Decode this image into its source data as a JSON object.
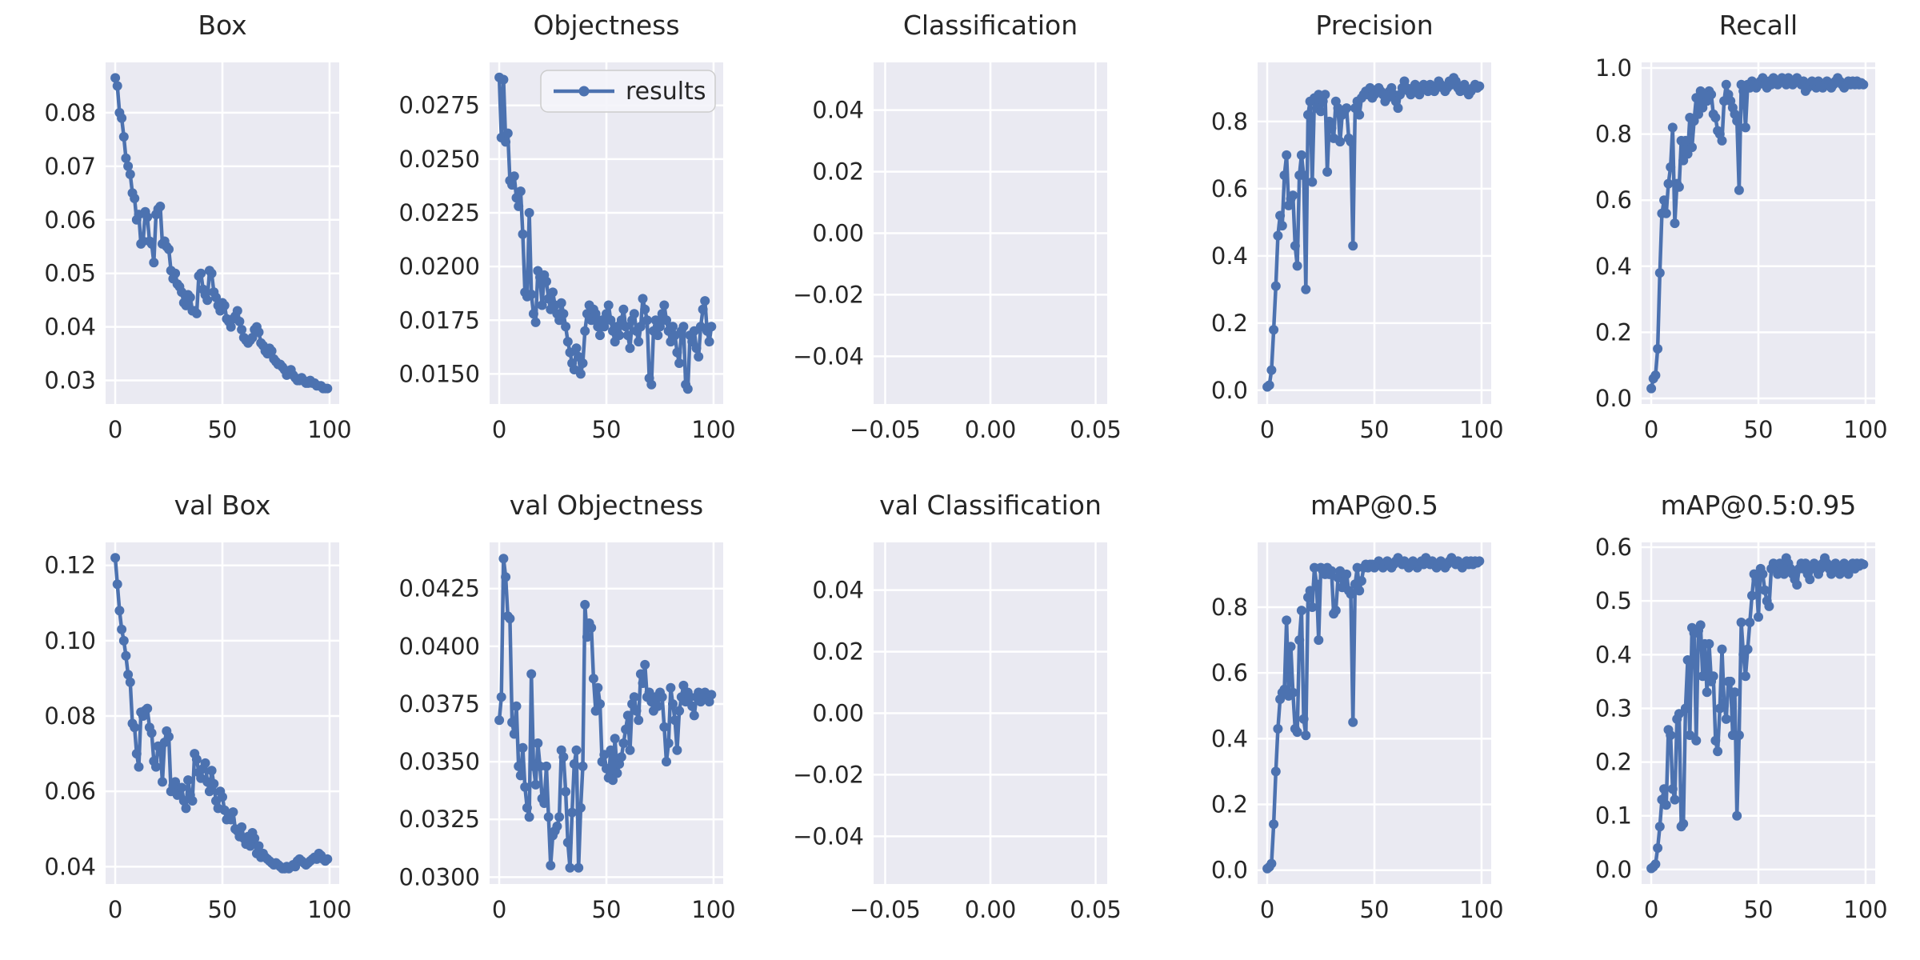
{
  "figure": {
    "background": "#ffffff",
    "axes_background": "#eaeaf2",
    "grid_color": "#ffffff",
    "text_color": "#262626",
    "line_color": "#4c72b0"
  },
  "legend": {
    "label": "results"
  },
  "chart_data": [
    {
      "type": "line",
      "title": "Box",
      "series_name": "results",
      "legend": false,
      "xlim": [
        -4.5,
        104.5
      ],
      "x_ticks": [
        0,
        50,
        100
      ],
      "x_tick_labels": [
        "0",
        "50",
        "100"
      ],
      "ylim": [
        0.0256,
        0.0894
      ],
      "y_ticks": [
        0.03,
        0.04,
        0.05,
        0.06,
        0.07,
        0.08
      ],
      "y_tick_labels": [
        "0.03",
        "0.04",
        "0.05",
        "0.06",
        "0.07",
        "0.08"
      ],
      "values": [
        0.0865,
        0.085,
        0.08,
        0.079,
        0.0755,
        0.0715,
        0.07,
        0.0685,
        0.065,
        0.064,
        0.06,
        0.061,
        0.0555,
        0.056,
        0.0615,
        0.0605,
        0.056,
        0.0555,
        0.052,
        0.061,
        0.062,
        0.0625,
        0.0555,
        0.056,
        0.055,
        0.0545,
        0.0505,
        0.049,
        0.05,
        0.048,
        0.0475,
        0.0465,
        0.0445,
        0.044,
        0.046,
        0.0455,
        0.043,
        0.043,
        0.0425,
        0.0495,
        0.05,
        0.047,
        0.046,
        0.045,
        0.0505,
        0.05,
        0.0465,
        0.0455,
        0.044,
        0.043,
        0.0445,
        0.044,
        0.0415,
        0.041,
        0.04,
        0.0415,
        0.042,
        0.043,
        0.041,
        0.0395,
        0.038,
        0.0375,
        0.037,
        0.0375,
        0.038,
        0.0395,
        0.04,
        0.039,
        0.037,
        0.0365,
        0.0355,
        0.035,
        0.036,
        0.0355,
        0.034,
        0.0335,
        0.033,
        0.033,
        0.0325,
        0.032,
        0.031,
        0.0315,
        0.032,
        0.031,
        0.0305,
        0.03,
        0.03,
        0.0305,
        0.03,
        0.0295,
        0.0295,
        0.03,
        0.0295,
        0.0295,
        0.029,
        0.029,
        0.029,
        0.0285,
        0.0285,
        0.0285
      ]
    },
    {
      "type": "line",
      "title": "Objectness",
      "series_name": "results",
      "legend": true,
      "xlim": [
        -4.5,
        104.5
      ],
      "x_ticks": [
        0,
        50,
        100
      ],
      "x_tick_labels": [
        "0",
        "50",
        "100"
      ],
      "ylim": [
        0.0136,
        0.0295
      ],
      "y_ticks": [
        0.015,
        0.0175,
        0.02,
        0.0225,
        0.025,
        0.0275
      ],
      "y_tick_labels": [
        "0.0150",
        "0.0175",
        "0.0200",
        "0.0225",
        "0.0250",
        "0.0275"
      ],
      "values": [
        0.0288,
        0.026,
        0.0287,
        0.0258,
        0.0262,
        0.024,
        0.0238,
        0.0242,
        0.0232,
        0.0228,
        0.0235,
        0.0215,
        0.0188,
        0.0186,
        0.0225,
        0.0187,
        0.0178,
        0.0174,
        0.0198,
        0.0195,
        0.0182,
        0.0196,
        0.0193,
        0.0185,
        0.018,
        0.0188,
        0.0182,
        0.0178,
        0.0175,
        0.0183,
        0.0178,
        0.0172,
        0.0165,
        0.016,
        0.0155,
        0.0152,
        0.0162,
        0.0158,
        0.015,
        0.0155,
        0.017,
        0.0178,
        0.0182,
        0.0175,
        0.018,
        0.0178,
        0.0172,
        0.0168,
        0.0175,
        0.0172,
        0.0178,
        0.0182,
        0.0175,
        0.017,
        0.0165,
        0.0172,
        0.0168,
        0.0175,
        0.018,
        0.0172,
        0.0168,
        0.0162,
        0.0175,
        0.0178,
        0.017,
        0.0165,
        0.0172,
        0.0185,
        0.018,
        0.0175,
        0.0148,
        0.0145,
        0.017,
        0.0175,
        0.0168,
        0.0172,
        0.0178,
        0.0182,
        0.0175,
        0.017,
        0.0165,
        0.0172,
        0.0168,
        0.016,
        0.0155,
        0.017,
        0.0172,
        0.0145,
        0.0143,
        0.0168,
        0.0165,
        0.017,
        0.0162,
        0.0158,
        0.0172,
        0.018,
        0.0184,
        0.017,
        0.0165,
        0.0172
      ]
    },
    {
      "type": "line",
      "title": "Classification",
      "series_name": "results",
      "legend": false,
      "xlim": [
        -0.0555,
        0.0555
      ],
      "x_ticks": [
        -0.05,
        0.0,
        0.05
      ],
      "x_tick_labels": [
        "−0.05",
        "0.00",
        "0.05"
      ],
      "ylim": [
        -0.0555,
        0.0555
      ],
      "y_ticks": [
        -0.04,
        -0.02,
        0.0,
        0.02,
        0.04
      ],
      "y_tick_labels": [
        "−0.04",
        "−0.02",
        "0.00",
        "0.02",
        "0.04"
      ],
      "values": []
    },
    {
      "type": "line",
      "title": "Precision",
      "series_name": "results",
      "legend": false,
      "xlim": [
        -4.5,
        104.5
      ],
      "x_ticks": [
        0,
        50,
        100
      ],
      "x_tick_labels": [
        "0",
        "50",
        "100"
      ],
      "ylim": [
        -0.041,
        0.976
      ],
      "y_ticks": [
        0.0,
        0.2,
        0.4,
        0.6,
        0.8
      ],
      "y_tick_labels": [
        "0.0",
        "0.2",
        "0.4",
        "0.6",
        "0.8"
      ],
      "values": [
        0.01,
        0.015,
        0.06,
        0.18,
        0.31,
        0.46,
        0.52,
        0.49,
        0.64,
        0.7,
        0.55,
        0.57,
        0.58,
        0.43,
        0.37,
        0.64,
        0.7,
        0.64,
        0.3,
        0.82,
        0.86,
        0.62,
        0.87,
        0.84,
        0.88,
        0.83,
        0.86,
        0.88,
        0.65,
        0.8,
        0.78,
        0.75,
        0.86,
        0.84,
        0.74,
        0.82,
        0.83,
        0.84,
        0.75,
        0.74,
        0.43,
        0.84,
        0.86,
        0.82,
        0.87,
        0.88,
        0.89,
        0.88,
        0.9,
        0.87,
        0.88,
        0.89,
        0.9,
        0.89,
        0.88,
        0.86,
        0.87,
        0.89,
        0.9,
        0.88,
        0.86,
        0.84,
        0.88,
        0.9,
        0.92,
        0.9,
        0.89,
        0.88,
        0.9,
        0.91,
        0.89,
        0.88,
        0.9,
        0.91,
        0.9,
        0.89,
        0.91,
        0.9,
        0.89,
        0.9,
        0.92,
        0.91,
        0.9,
        0.89,
        0.9,
        0.92,
        0.91,
        0.93,
        0.92,
        0.9,
        0.89,
        0.9,
        0.91,
        0.89,
        0.88,
        0.89,
        0.9,
        0.91,
        0.9,
        0.905
      ]
    },
    {
      "type": "line",
      "title": "Recall",
      "series_name": "results",
      "legend": false,
      "xlim": [
        -4.5,
        104.5
      ],
      "x_ticks": [
        0,
        50,
        100
      ],
      "x_tick_labels": [
        "0",
        "50",
        "100"
      ],
      "ylim": [
        -0.017,
        1.017
      ],
      "y_ticks": [
        0.0,
        0.2,
        0.4,
        0.6,
        0.8,
        1.0
      ],
      "y_tick_labels": [
        "0.0",
        "0.2",
        "0.4",
        "0.6",
        "0.8",
        "1.0"
      ],
      "values": [
        0.03,
        0.06,
        0.07,
        0.15,
        0.38,
        0.56,
        0.6,
        0.56,
        0.65,
        0.7,
        0.82,
        0.53,
        0.65,
        0.64,
        0.78,
        0.72,
        0.78,
        0.74,
        0.85,
        0.76,
        0.84,
        0.91,
        0.86,
        0.93,
        0.88,
        0.92,
        0.9,
        0.93,
        0.92,
        0.86,
        0.85,
        0.81,
        0.8,
        0.78,
        0.9,
        0.95,
        0.92,
        0.9,
        0.88,
        0.86,
        0.84,
        0.63,
        0.95,
        0.93,
        0.82,
        0.95,
        0.94,
        0.96,
        0.95,
        0.94,
        0.95,
        0.96,
        0.97,
        0.95,
        0.94,
        0.96,
        0.95,
        0.97,
        0.96,
        0.95,
        0.96,
        0.97,
        0.96,
        0.95,
        0.97,
        0.96,
        0.95,
        0.96,
        0.97,
        0.96,
        0.95,
        0.96,
        0.93,
        0.94,
        0.95,
        0.96,
        0.95,
        0.94,
        0.96,
        0.95,
        0.94,
        0.95,
        0.96,
        0.95,
        0.94,
        0.95,
        0.96,
        0.97,
        0.96,
        0.95,
        0.94,
        0.95,
        0.96,
        0.95,
        0.96,
        0.95,
        0.96,
        0.95,
        0.955,
        0.95
      ]
    },
    {
      "type": "line",
      "title": "val Box",
      "series_name": "results",
      "legend": false,
      "xlim": [
        -4.5,
        104.5
      ],
      "x_ticks": [
        0,
        50,
        100
      ],
      "x_tick_labels": [
        "0",
        "50",
        "100"
      ],
      "ylim": [
        0.0354,
        0.1261
      ],
      "y_ticks": [
        0.04,
        0.06,
        0.08,
        0.1,
        0.12
      ],
      "y_tick_labels": [
        "0.04",
        "0.06",
        "0.08",
        "0.10",
        "0.12"
      ],
      "values": [
        0.122,
        0.115,
        0.108,
        0.103,
        0.1,
        0.096,
        0.091,
        0.089,
        0.078,
        0.077,
        0.07,
        0.0665,
        0.081,
        0.08,
        0.0815,
        0.082,
        0.077,
        0.0755,
        0.068,
        0.0665,
        0.072,
        0.0715,
        0.0625,
        0.073,
        0.076,
        0.0745,
        0.06,
        0.0615,
        0.0625,
        0.059,
        0.0605,
        0.061,
        0.0575,
        0.0555,
        0.063,
        0.059,
        0.0575,
        0.07,
        0.0685,
        0.065,
        0.0635,
        0.066,
        0.0675,
        0.0625,
        0.06,
        0.0655,
        0.062,
        0.0575,
        0.0555,
        0.06,
        0.0585,
        0.055,
        0.0525,
        0.054,
        0.0525,
        0.0545,
        0.05,
        0.0495,
        0.048,
        0.0505,
        0.0475,
        0.046,
        0.048,
        0.0455,
        0.049,
        0.0475,
        0.0435,
        0.0455,
        0.0425,
        0.0435,
        0.0425,
        0.042,
        0.0415,
        0.041,
        0.0405,
        0.041,
        0.0405,
        0.04,
        0.0395,
        0.0395,
        0.04,
        0.0395,
        0.04,
        0.0405,
        0.04,
        0.0415,
        0.042,
        0.0415,
        0.041,
        0.0405,
        0.041,
        0.0415,
        0.042,
        0.0425,
        0.042,
        0.0435,
        0.043,
        0.042,
        0.0415,
        0.042
      ]
    },
    {
      "type": "line",
      "title": "val Objectness",
      "series_name": "results",
      "legend": false,
      "xlim": [
        -4.5,
        104.5
      ],
      "x_ticks": [
        0,
        50,
        100
      ],
      "x_tick_labels": [
        "0",
        "50",
        "100"
      ],
      "ylim": [
        0.0297,
        0.0445
      ],
      "y_ticks": [
        0.03,
        0.0325,
        0.035,
        0.0375,
        0.04,
        0.0425
      ],
      "y_tick_labels": [
        "0.0300",
        "0.0325",
        "0.0350",
        "0.0375",
        "0.0400",
        "0.0425"
      ],
      "values": [
        0.0368,
        0.0378,
        0.0438,
        0.043,
        0.0413,
        0.0412,
        0.0367,
        0.0362,
        0.0374,
        0.0348,
        0.0344,
        0.0356,
        0.0339,
        0.033,
        0.0326,
        0.0388,
        0.0348,
        0.034,
        0.0358,
        0.0348,
        0.0334,
        0.0332,
        0.0348,
        0.0326,
        0.0305,
        0.0318,
        0.032,
        0.0322,
        0.0326,
        0.0355,
        0.0352,
        0.0337,
        0.0315,
        0.0304,
        0.0328,
        0.0349,
        0.0355,
        0.0304,
        0.033,
        0.0348,
        0.0418,
        0.0404,
        0.041,
        0.0408,
        0.0386,
        0.0372,
        0.0382,
        0.0375,
        0.035,
        0.0353,
        0.0347,
        0.0343,
        0.0355,
        0.0342,
        0.036,
        0.0345,
        0.0349,
        0.0352,
        0.0358,
        0.0364,
        0.037,
        0.0355,
        0.0375,
        0.0378,
        0.0372,
        0.0368,
        0.0388,
        0.0384,
        0.0392,
        0.0378,
        0.038,
        0.0376,
        0.0372,
        0.0378,
        0.0374,
        0.038,
        0.0378,
        0.0365,
        0.035,
        0.0358,
        0.0382,
        0.0375,
        0.0368,
        0.0355,
        0.0372,
        0.0378,
        0.0383,
        0.0376,
        0.038,
        0.0378,
        0.0374,
        0.037,
        0.0378,
        0.038,
        0.0376,
        0.0378,
        0.038,
        0.0378,
        0.0376,
        0.0379
      ]
    },
    {
      "type": "line",
      "title": "val Classification",
      "series_name": "results",
      "legend": false,
      "xlim": [
        -0.0555,
        0.0555
      ],
      "x_ticks": [
        -0.05,
        0.0,
        0.05
      ],
      "x_tick_labels": [
        "−0.05",
        "0.00",
        "0.05"
      ],
      "ylim": [
        -0.0555,
        0.0555
      ],
      "y_ticks": [
        -0.04,
        -0.02,
        0.0,
        0.02,
        0.04
      ],
      "y_tick_labels": [
        "−0.04",
        "−0.02",
        "0.00",
        "0.02",
        "0.04"
      ],
      "values": []
    },
    {
      "type": "line",
      "title": "mAP@0.5",
      "series_name": "results",
      "legend": false,
      "xlim": [
        -4.5,
        104.5
      ],
      "x_ticks": [
        0,
        50,
        100
      ],
      "x_tick_labels": [
        "0",
        "50",
        "100"
      ],
      "ylim": [
        -0.042,
        0.997
      ],
      "y_ticks": [
        0.0,
        0.2,
        0.4,
        0.6,
        0.8
      ],
      "y_tick_labels": [
        "0.0",
        "0.2",
        "0.4",
        "0.6",
        "0.8"
      ],
      "values": [
        0.005,
        0.01,
        0.02,
        0.14,
        0.3,
        0.43,
        0.52,
        0.54,
        0.55,
        0.76,
        0.53,
        0.68,
        0.54,
        0.43,
        0.42,
        0.7,
        0.79,
        0.46,
        0.41,
        0.83,
        0.85,
        0.8,
        0.92,
        0.87,
        0.7,
        0.92,
        0.91,
        0.9,
        0.92,
        0.9,
        0.91,
        0.78,
        0.79,
        0.89,
        0.91,
        0.86,
        0.88,
        0.9,
        0.85,
        0.84,
        0.45,
        0.87,
        0.92,
        0.85,
        0.88,
        0.92,
        0.93,
        0.92,
        0.93,
        0.93,
        0.92,
        0.93,
        0.94,
        0.93,
        0.92,
        0.93,
        0.94,
        0.93,
        0.92,
        0.93,
        0.94,
        0.95,
        0.94,
        0.93,
        0.94,
        0.93,
        0.92,
        0.93,
        0.94,
        0.93,
        0.92,
        0.93,
        0.94,
        0.93,
        0.95,
        0.94,
        0.93,
        0.94,
        0.93,
        0.92,
        0.93,
        0.94,
        0.93,
        0.92,
        0.93,
        0.94,
        0.95,
        0.94,
        0.93,
        0.94,
        0.93,
        0.92,
        0.93,
        0.94,
        0.93,
        0.94,
        0.93,
        0.94,
        0.935,
        0.94
      ]
    },
    {
      "type": "line",
      "title": "mAP@0.5:0.95",
      "series_name": "results",
      "legend": false,
      "xlim": [
        -4.5,
        104.5
      ],
      "x_ticks": [
        0,
        50,
        100
      ],
      "x_tick_labels": [
        "0",
        "50",
        "100"
      ],
      "ylim": [
        -0.027,
        0.609
      ],
      "y_ticks": [
        0.0,
        0.1,
        0.2,
        0.3,
        0.4,
        0.5,
        0.6
      ],
      "y_tick_labels": [
        "0.0",
        "0.1",
        "0.2",
        "0.3",
        "0.4",
        "0.5",
        "0.6"
      ],
      "values": [
        0.002,
        0.005,
        0.01,
        0.04,
        0.08,
        0.13,
        0.15,
        0.12,
        0.26,
        0.25,
        0.15,
        0.13,
        0.28,
        0.29,
        0.08,
        0.085,
        0.3,
        0.39,
        0.25,
        0.45,
        0.44,
        0.24,
        0.445,
        0.455,
        0.36,
        0.42,
        0.33,
        0.42,
        0.35,
        0.36,
        0.24,
        0.22,
        0.3,
        0.41,
        0.31,
        0.28,
        0.35,
        0.35,
        0.25,
        0.33,
        0.1,
        0.25,
        0.46,
        0.4,
        0.36,
        0.41,
        0.46,
        0.51,
        0.55,
        0.54,
        0.47,
        0.56,
        0.55,
        0.52,
        0.5,
        0.49,
        0.56,
        0.57,
        0.56,
        0.55,
        0.57,
        0.56,
        0.55,
        0.58,
        0.57,
        0.56,
        0.55,
        0.54,
        0.53,
        0.56,
        0.57,
        0.56,
        0.57,
        0.55,
        0.54,
        0.56,
        0.57,
        0.56,
        0.55,
        0.56,
        0.57,
        0.58,
        0.57,
        0.56,
        0.55,
        0.56,
        0.57,
        0.56,
        0.55,
        0.56,
        0.57,
        0.56,
        0.55,
        0.56,
        0.57,
        0.56,
        0.57,
        0.565,
        0.57,
        0.568
      ]
    }
  ]
}
